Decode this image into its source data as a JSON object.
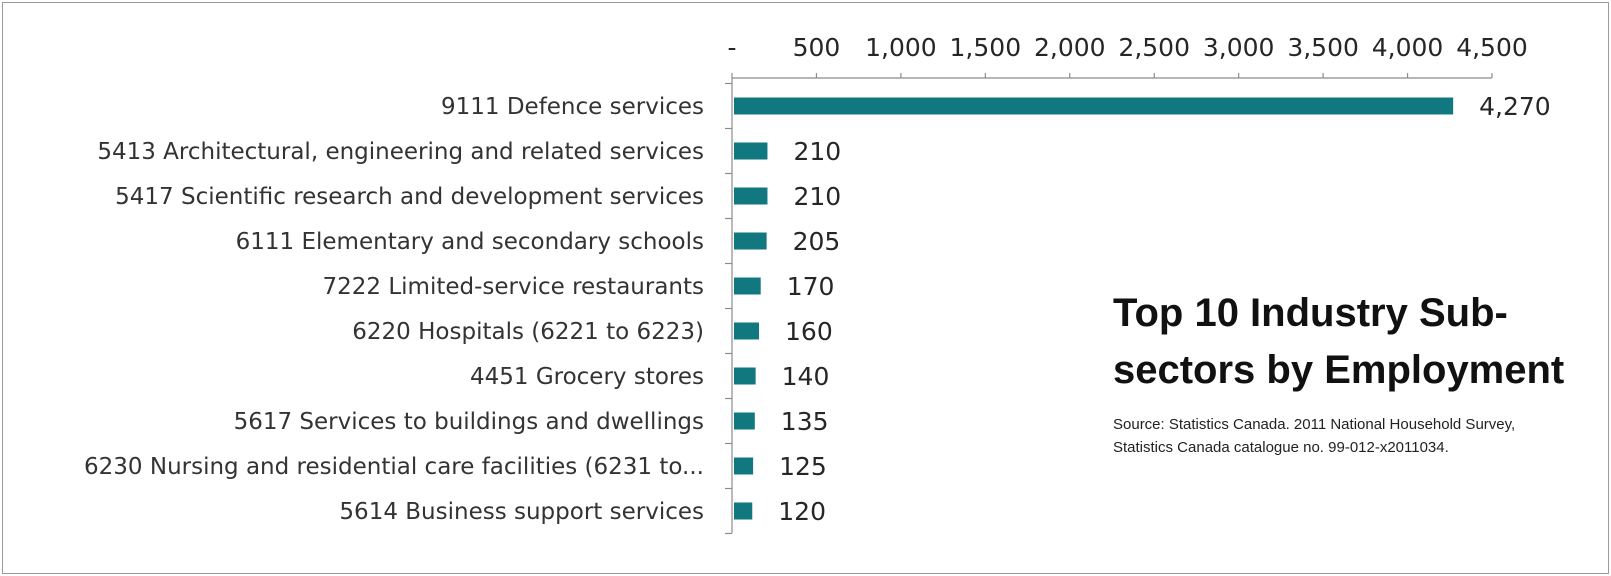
{
  "chart_data": {
    "type": "bar",
    "orientation": "horizontal",
    "title": "Top 10 Industry Sub-sectors by Employment",
    "source": "Source: Statistics Canada. 2011 National Household Survey, Statistics Canada catalogue no. 99-012-x2011034.",
    "categories": [
      "9111 Defence services",
      "5413 Architectural, engineering and related services",
      "5417 Scientific research and development services",
      "6111 Elementary and secondary schools",
      "7222 Limited-service restaurants",
      "6220 Hospitals (6221 to 6223)",
      "4451 Grocery stores",
      "5617 Services to buildings and dwellings",
      "6230 Nursing and residential care facilities (6231 to...",
      "5614 Business support services"
    ],
    "values": [
      4270,
      210,
      210,
      205,
      170,
      160,
      140,
      135,
      125,
      120
    ],
    "value_labels": [
      "4,270",
      "210",
      "210",
      "205",
      "170",
      "160",
      "140",
      "135",
      "125",
      "120"
    ],
    "xlim": [
      0,
      4500
    ],
    "x_ticks": [
      0,
      500,
      1000,
      1500,
      2000,
      2500,
      3000,
      3500,
      4000,
      4500
    ],
    "x_tick_labels": [
      "-",
      "500",
      "1,000",
      "1,500",
      "2,000",
      "2,500",
      "3,000",
      "3,500",
      "4,000",
      "4,500"
    ],
    "x_axis_position": "top",
    "grid": false,
    "bar_color": "#127880"
  }
}
